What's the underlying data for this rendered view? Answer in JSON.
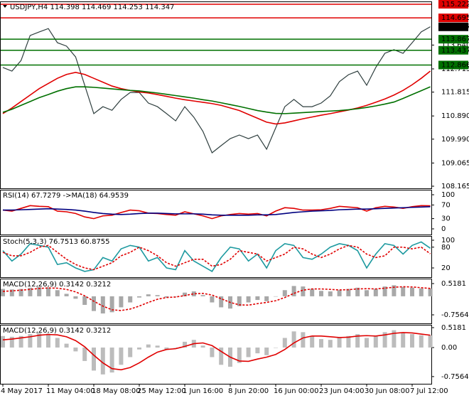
{
  "chart_data": [
    {
      "type": "line",
      "title": "USDJPY,H4  114.398 114.469 114.253 114.347",
      "categories": [
        "4 May 2017",
        null,
        null,
        null,
        null,
        "11 May 04:00",
        null,
        null,
        null,
        null,
        "18 May 08:00",
        null,
        null,
        null,
        null,
        "25 May 12:00",
        null,
        null,
        null,
        null,
        "1 Jun 16:00",
        null,
        null,
        null,
        null,
        "8 Jun 20:00",
        null,
        null,
        null,
        null,
        "16 Jun 00:00",
        null,
        null,
        null,
        null,
        "23 Jun 04:00",
        null,
        null,
        null,
        null,
        "30 Jun 08:00",
        null,
        null,
        null,
        null,
        "7 Jul 12:00",
        null,
        null
      ],
      "ylim": [
        108.165,
        115.222
      ],
      "yticks": [
        108.165,
        109.065,
        {
          "value": 109.99,
          "label": "109.990"
        },
        {
          "value": 110.89,
          "label": "110.890"
        },
        111.815,
        112.715,
        {
          "value": 113.64,
          "label": "113.640"
        }
      ],
      "levels": [
        {
          "value": 115.222,
          "color": "#e00000"
        },
        {
          "value": 114.695,
          "color": "#e00000"
        },
        {
          "value": 113.867,
          "color": "#007000"
        },
        {
          "value": 113.437,
          "color": "#007000"
        },
        {
          "value": 112.866,
          "color": "#007000"
        }
      ],
      "current_price": 114.347,
      "series": [
        {
          "color": "#2f3f3f",
          "style": "line",
          "values": [
            112.77,
            112.63,
            113.04,
            114.01,
            114.15,
            114.28,
            113.73,
            113.6,
            113.18,
            112.08,
            110.98,
            111.25,
            111.11,
            111.53,
            111.8,
            111.8,
            111.39,
            111.25,
            110.98,
            110.7,
            111.25,
            110.84,
            110.29,
            109.46,
            109.74,
            110.01,
            110.15,
            110.01,
            110.15,
            109.6,
            110.43,
            111.25,
            111.53,
            111.25,
            111.25,
            111.39,
            111.67,
            112.22,
            112.49,
            112.63,
            112.08,
            112.77,
            113.32,
            113.46,
            113.32,
            113.73,
            114.15,
            114.35
          ]
        },
        {
          "color": "#e00000",
          "style": "line",
          "values": [
            110.98,
            111.2,
            111.45,
            111.7,
            111.95,
            112.15,
            112.35,
            112.5,
            112.58,
            112.5,
            112.35,
            112.2,
            112.05,
            111.95,
            111.88,
            111.82,
            111.78,
            111.72,
            111.65,
            111.58,
            111.52,
            111.47,
            111.42,
            111.37,
            111.3,
            111.2,
            111.1,
            110.95,
            110.8,
            110.65,
            110.58,
            110.62,
            110.7,
            110.78,
            110.85,
            110.92,
            110.98,
            111.05,
            111.12,
            111.2,
            111.3,
            111.42,
            111.55,
            111.7,
            111.88,
            112.1,
            112.35,
            112.63
          ]
        },
        {
          "color": "#007000",
          "style": "line",
          "values": [
            111.03,
            111.15,
            111.3,
            111.45,
            111.6,
            111.72,
            111.85,
            111.95,
            112.02,
            112.02,
            112.0,
            111.97,
            111.94,
            111.91,
            111.88,
            111.86,
            111.82,
            111.78,
            111.73,
            111.68,
            111.63,
            111.58,
            111.52,
            111.47,
            111.4,
            111.33,
            111.26,
            111.18,
            111.1,
            111.04,
            110.99,
            110.98,
            111.0,
            111.02,
            111.04,
            111.06,
            111.08,
            111.1,
            111.13,
            111.17,
            111.22,
            111.28,
            111.35,
            111.43,
            111.57,
            111.72,
            111.87,
            112.02
          ]
        }
      ]
    },
    {
      "type": "line",
      "title": "RSI(14) 67.7279  ->MA(18) 64.9539",
      "ylim": [
        0,
        100
      ],
      "yticks": [
        0,
        30,
        70,
        100
      ],
      "series": [
        {
          "color": "#e00000",
          "style": "line",
          "values": [
            55,
            52,
            60,
            68,
            66,
            65,
            52,
            50,
            45,
            35,
            30,
            38,
            40,
            48,
            55,
            53,
            46,
            45,
            42,
            40,
            50,
            44,
            38,
            30,
            38,
            42,
            45,
            43,
            45,
            38,
            52,
            62,
            60,
            55,
            55,
            56,
            60,
            66,
            64,
            62,
            52,
            62,
            66,
            64,
            60,
            65,
            68,
            67.73
          ]
        },
        {
          "color": "#000080",
          "style": "line",
          "values": [
            55,
            55,
            56,
            57,
            58,
            59,
            58,
            57,
            55,
            52,
            48,
            45,
            43,
            42,
            43,
            45,
            46,
            46,
            45,
            44,
            44,
            44,
            43,
            41,
            40,
            40,
            40,
            40,
            41,
            41,
            42,
            45,
            48,
            50,
            52,
            53,
            54,
            56,
            57,
            58,
            58,
            59,
            60,
            61,
            62,
            63,
            64,
            64.95
          ]
        }
      ]
    },
    {
      "type": "line",
      "title": "Stoch(5,3,3) 76.7513 60.8755",
      "ylim": [
        0,
        100
      ],
      "yticks": [
        20,
        80,
        100
      ],
      "series": [
        {
          "color": "#1e9aa0",
          "style": "line",
          "values": [
            70,
            40,
            60,
            90,
            85,
            80,
            30,
            35,
            20,
            10,
            15,
            50,
            40,
            75,
            85,
            80,
            40,
            50,
            20,
            15,
            70,
            40,
            25,
            10,
            50,
            80,
            75,
            40,
            60,
            20,
            70,
            90,
            85,
            50,
            45,
            60,
            80,
            90,
            85,
            70,
            20,
            60,
            90,
            85,
            60,
            85,
            95,
            76.75
          ]
        },
        {
          "color": "#e00000",
          "style": "line",
          "dashed": true,
          "values": [
            65,
            55,
            55,
            65,
            80,
            85,
            65,
            45,
            30,
            20,
            15,
            25,
            35,
            55,
            65,
            80,
            70,
            55,
            35,
            25,
            35,
            45,
            45,
            25,
            30,
            45,
            70,
            65,
            60,
            40,
            50,
            60,
            80,
            75,
            60,
            50,
            60,
            75,
            85,
            80,
            60,
            50,
            55,
            80,
            80,
            75,
            80,
            60.88
          ]
        }
      ]
    },
    {
      "type": "bar",
      "title": "MACD(12,26,9) 0.3142 0.3212",
      "ylim": [
        -1.104,
        0.721
      ],
      "yticks": [
        0.5181,
        -0.7564
      ],
      "series": [
        {
          "color": "#a8a8a8",
          "style": "bar",
          "values": [
            0.3,
            0.28,
            0.3,
            0.35,
            0.38,
            0.36,
            0.25,
            0.1,
            -0.1,
            -0.35,
            -0.6,
            -0.7,
            -0.65,
            -0.45,
            -0.25,
            -0.05,
            0.08,
            0.05,
            -0.05,
            0.0,
            0.15,
            0.2,
            0.05,
            -0.25,
            -0.45,
            -0.5,
            -0.4,
            -0.25,
            -0.15,
            -0.2,
            0.0,
            0.25,
            0.42,
            0.4,
            0.3,
            0.22,
            0.2,
            0.25,
            0.3,
            0.35,
            0.25,
            0.3,
            0.4,
            0.45,
            0.38,
            0.35,
            0.32,
            0.3142
          ]
        },
        {
          "color": "#e00000",
          "style": "line",
          "dashed": true,
          "values": [
            0.2,
            0.22,
            0.25,
            0.28,
            0.32,
            0.34,
            0.33,
            0.28,
            0.18,
            0.02,
            -0.2,
            -0.4,
            -0.55,
            -0.58,
            -0.52,
            -0.4,
            -0.25,
            -0.12,
            -0.05,
            -0.03,
            0.03,
            0.1,
            0.12,
            0.05,
            -0.1,
            -0.25,
            -0.35,
            -0.36,
            -0.3,
            -0.25,
            -0.18,
            -0.05,
            0.12,
            0.25,
            0.3,
            0.3,
            0.28,
            0.26,
            0.27,
            0.3,
            0.31,
            0.3,
            0.33,
            0.37,
            0.39,
            0.38,
            0.35,
            0.3212
          ]
        }
      ]
    },
    {
      "type": "bar",
      "title": "MACD(12,26,9) 0.3142 0.3212",
      "ylim": [
        -0.944,
        0.592
      ],
      "yticks": [
        0.5181,
        {
          "value": 0,
          "label": "0.00"
        },
        -0.7564
      ],
      "series": [
        {
          "color": "#bcbcbc",
          "style": "bar",
          "values": [
            0.3,
            0.28,
            0.3,
            0.35,
            0.38,
            0.36,
            0.25,
            0.1,
            -0.1,
            -0.35,
            -0.6,
            -0.7,
            -0.65,
            -0.45,
            -0.25,
            -0.05,
            0.08,
            0.05,
            -0.05,
            0.0,
            0.15,
            0.2,
            0.05,
            -0.25,
            -0.45,
            -0.5,
            -0.4,
            -0.25,
            -0.15,
            -0.2,
            0.0,
            0.25,
            0.42,
            0.4,
            0.3,
            0.22,
            0.2,
            0.25,
            0.3,
            0.35,
            0.25,
            0.3,
            0.4,
            0.45,
            0.38,
            0.35,
            0.32,
            0.3142
          ]
        },
        {
          "color": "#e00000",
          "style": "line",
          "values": [
            0.2,
            0.22,
            0.25,
            0.28,
            0.32,
            0.34,
            0.33,
            0.28,
            0.18,
            0.02,
            -0.2,
            -0.4,
            -0.55,
            -0.58,
            -0.52,
            -0.4,
            -0.25,
            -0.12,
            -0.05,
            -0.03,
            0.03,
            0.1,
            0.12,
            0.05,
            -0.1,
            -0.25,
            -0.35,
            -0.36,
            -0.3,
            -0.25,
            -0.18,
            -0.05,
            0.12,
            0.25,
            0.3,
            0.3,
            0.28,
            0.26,
            0.27,
            0.3,
            0.31,
            0.3,
            0.33,
            0.37,
            0.39,
            0.38,
            0.35,
            0.3212
          ]
        }
      ]
    }
  ]
}
